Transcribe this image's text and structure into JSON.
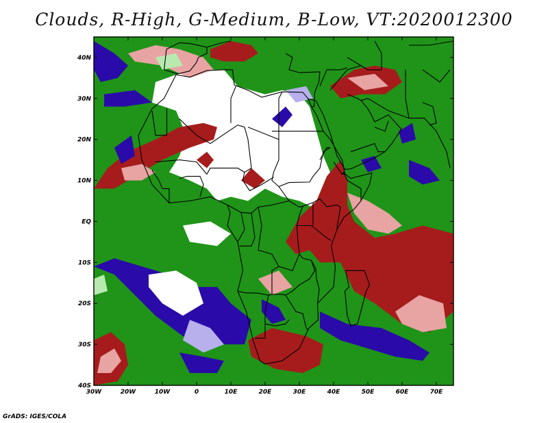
{
  "title": "Clouds, R-High, G-Medium, B-Low, VT:2020012300",
  "credit": "GrADS: IGES/COLA",
  "colors": {
    "high": "#a61c1c",
    "high_light": "#e8a3a3",
    "medium": "#1f9418",
    "medium_light": "#b8eab0",
    "low": "#2a0aa8",
    "low_light": "#b7b0ec",
    "clear": "#ffffff",
    "border": "#000000"
  },
  "chart_data": {
    "type": "heatmap",
    "title": "Clouds, R-High, G-Medium, B-Low, VT:2020012300",
    "xlim": [
      -30,
      75
    ],
    "ylim": [
      -40,
      45
    ],
    "x_ticks": [
      {
        "value": -30,
        "label": "30W"
      },
      {
        "value": -20,
        "label": "20W"
      },
      {
        "value": -10,
        "label": "10W"
      },
      {
        "value": 0,
        "label": "0"
      },
      {
        "value": 10,
        "label": "10E"
      },
      {
        "value": 20,
        "label": "20E"
      },
      {
        "value": 30,
        "label": "30E"
      },
      {
        "value": 40,
        "label": "40E"
      },
      {
        "value": 50,
        "label": "50E"
      },
      {
        "value": 60,
        "label": "60E"
      },
      {
        "value": 70,
        "label": "70E"
      }
    ],
    "y_ticks": [
      {
        "value": 40,
        "label": "40N"
      },
      {
        "value": 30,
        "label": "30N"
      },
      {
        "value": 20,
        "label": "20N"
      },
      {
        "value": 10,
        "label": "10N"
      },
      {
        "value": 0,
        "label": "EQ"
      },
      {
        "value": -10,
        "label": "10S"
      },
      {
        "value": -20,
        "label": "20S"
      },
      {
        "value": -30,
        "label": "30S"
      },
      {
        "value": -40,
        "label": "40S"
      }
    ],
    "regions": [
      {
        "cloud": "medium",
        "shade": "dark",
        "points": [
          [
            -30,
            45
          ],
          [
            75,
            45
          ],
          [
            75,
            -40
          ],
          [
            -30,
            -40
          ]
        ]
      },
      {
        "cloud": "clear",
        "shade": "dark",
        "points": [
          [
            -12,
            34
          ],
          [
            -2,
            37
          ],
          [
            8,
            37
          ],
          [
            12,
            33
          ],
          [
            20,
            31
          ],
          [
            25,
            32
          ],
          [
            30,
            31
          ],
          [
            33,
            28
          ],
          [
            35,
            22
          ],
          [
            37,
            16
          ],
          [
            40,
            10
          ],
          [
            41,
            6
          ],
          [
            35,
            3
          ],
          [
            30,
            5
          ],
          [
            25,
            6
          ],
          [
            20,
            8
          ],
          [
            15,
            5
          ],
          [
            10,
            6
          ],
          [
            6,
            5
          ],
          [
            3,
            8
          ],
          [
            -2,
            10
          ],
          [
            -8,
            12
          ],
          [
            -5,
            16
          ],
          [
            -3,
            21
          ],
          [
            -6,
            27
          ],
          [
            -13,
            29
          ]
        ]
      },
      {
        "cloud": "high",
        "shade": "dark",
        "points": [
          [
            -30,
            8
          ],
          [
            -26,
            13
          ],
          [
            -20,
            17
          ],
          [
            -12,
            20
          ],
          [
            -5,
            23
          ],
          [
            2,
            24
          ],
          [
            6,
            23
          ],
          [
            5,
            20
          ],
          [
            -2,
            18
          ],
          [
            -10,
            15
          ],
          [
            -18,
            11
          ],
          [
            -24,
            8
          ]
        ]
      },
      {
        "cloud": "high",
        "shade": "light",
        "points": [
          [
            -22,
            13
          ],
          [
            -16,
            14
          ],
          [
            -12,
            12
          ],
          [
            -16,
            10
          ],
          [
            -21,
            10
          ]
        ]
      },
      {
        "cloud": "high",
        "shade": "dark",
        "points": [
          [
            26,
            -5
          ],
          [
            30,
            1
          ],
          [
            35,
            5
          ],
          [
            38,
            11
          ],
          [
            42,
            15
          ],
          [
            44,
            10
          ],
          [
            44,
            4
          ],
          [
            46,
            0
          ],
          [
            52,
            -4
          ],
          [
            58,
            -3
          ],
          [
            66,
            -1
          ],
          [
            75,
            -3
          ],
          [
            75,
            -22
          ],
          [
            68,
            -27
          ],
          [
            60,
            -25
          ],
          [
            52,
            -20
          ],
          [
            46,
            -17
          ],
          [
            42,
            -10
          ],
          [
            36,
            -10
          ],
          [
            33,
            -7
          ],
          [
            29,
            -8
          ]
        ]
      },
      {
        "cloud": "high",
        "shade": "light",
        "points": [
          [
            44,
            7
          ],
          [
            50,
            5
          ],
          [
            56,
            2
          ],
          [
            60,
            -1
          ],
          [
            56,
            -3
          ],
          [
            50,
            -2
          ],
          [
            46,
            2
          ]
        ]
      },
      {
        "cloud": "high",
        "shade": "light",
        "points": [
          [
            58,
            -22
          ],
          [
            65,
            -18
          ],
          [
            72,
            -20
          ],
          [
            73,
            -26
          ],
          [
            66,
            -27
          ],
          [
            60,
            -25
          ]
        ]
      },
      {
        "cloud": "high",
        "shade": "dark",
        "points": [
          [
            -30,
            -29
          ],
          [
            -25,
            -27
          ],
          [
            -21,
            -30
          ],
          [
            -20,
            -35
          ],
          [
            -23,
            -39
          ],
          [
            -30,
            -40
          ]
        ]
      },
      {
        "cloud": "high",
        "shade": "light",
        "points": [
          [
            -28,
            -33
          ],
          [
            -24,
            -31
          ],
          [
            -22,
            -34
          ],
          [
            -25,
            -37
          ],
          [
            -29,
            -37
          ]
        ]
      },
      {
        "cloud": "high",
        "shade": "dark",
        "points": [
          [
            15,
            -29
          ],
          [
            22,
            -26
          ],
          [
            32,
            -28
          ],
          [
            37,
            -30
          ],
          [
            36,
            -35
          ],
          [
            31,
            -37
          ],
          [
            23,
            -36
          ],
          [
            16,
            -33
          ]
        ]
      },
      {
        "cloud": "high",
        "shade": "light",
        "points": [
          [
            -20,
            41
          ],
          [
            -12,
            43
          ],
          [
            -5,
            42
          ],
          [
            2,
            40
          ],
          [
            5,
            37
          ],
          [
            -2,
            35
          ],
          [
            -10,
            38
          ],
          [
            -18,
            39
          ]
        ]
      },
      {
        "cloud": "high",
        "shade": "dark",
        "points": [
          [
            4,
            42
          ],
          [
            10,
            44
          ],
          [
            16,
            43
          ],
          [
            18,
            41
          ],
          [
            14,
            39
          ],
          [
            8,
            39
          ],
          [
            4,
            40
          ]
        ]
      },
      {
        "cloud": "high",
        "shade": "dark",
        "points": [
          [
            39,
            33
          ],
          [
            46,
            37
          ],
          [
            52,
            38
          ],
          [
            58,
            37
          ],
          [
            60,
            34
          ],
          [
            55,
            31
          ],
          [
            48,
            31
          ],
          [
            42,
            30
          ]
        ]
      },
      {
        "cloud": "high",
        "shade": "light",
        "points": [
          [
            44,
            35
          ],
          [
            52,
            36
          ],
          [
            56,
            33
          ],
          [
            49,
            32
          ]
        ]
      },
      {
        "cloud": "high",
        "shade": "dark",
        "points": [
          [
            13,
            10
          ],
          [
            16,
            13
          ],
          [
            20,
            10
          ],
          [
            17,
            8
          ]
        ]
      },
      {
        "cloud": "high",
        "shade": "dark",
        "points": [
          [
            0,
            15
          ],
          [
            3,
            17
          ],
          [
            5,
            15
          ],
          [
            3,
            13
          ]
        ]
      },
      {
        "cloud": "high",
        "shade": "light",
        "points": [
          [
            18,
            -14
          ],
          [
            24,
            -12
          ],
          [
            28,
            -16
          ],
          [
            22,
            -18
          ]
        ]
      },
      {
        "cloud": "low",
        "shade": "dark",
        "points": [
          [
            -30,
            44
          ],
          [
            -24,
            41
          ],
          [
            -20,
            38
          ],
          [
            -23,
            35
          ],
          [
            -28,
            34
          ],
          [
            -30,
            37
          ]
        ]
      },
      {
        "cloud": "low",
        "shade": "dark",
        "points": [
          [
            -27,
            31
          ],
          [
            -18,
            32
          ],
          [
            -13,
            29
          ],
          [
            -21,
            28
          ],
          [
            -27,
            28
          ]
        ]
      },
      {
        "cloud": "low",
        "shade": "dark",
        "points": [
          [
            -30,
            -11
          ],
          [
            -24,
            -13
          ],
          [
            -18,
            -18
          ],
          [
            -12,
            -23
          ],
          [
            -4,
            -28
          ],
          [
            6,
            -30
          ],
          [
            14,
            -30
          ],
          [
            16,
            -24
          ],
          [
            10,
            -20
          ],
          [
            6,
            -16
          ],
          [
            -2,
            -16
          ],
          [
            -8,
            -13
          ],
          [
            -16,
            -11
          ],
          [
            -24,
            -9
          ]
        ]
      },
      {
        "cloud": "clear",
        "shade": "dark",
        "points": [
          [
            -14,
            -13
          ],
          [
            -6,
            -12
          ],
          [
            0,
            -15
          ],
          [
            2,
            -20
          ],
          [
            -4,
            -23
          ],
          [
            -10,
            -20
          ],
          [
            -14,
            -16
          ]
        ]
      },
      {
        "cloud": "low",
        "shade": "light",
        "points": [
          [
            -2,
            -24
          ],
          [
            4,
            -26
          ],
          [
            8,
            -30
          ],
          [
            2,
            -32
          ],
          [
            -4,
            -29
          ]
        ]
      },
      {
        "cloud": "low",
        "shade": "dark",
        "points": [
          [
            36,
            -22
          ],
          [
            44,
            -25
          ],
          [
            54,
            -26
          ],
          [
            62,
            -29
          ],
          [
            68,
            -32
          ],
          [
            66,
            -34
          ],
          [
            58,
            -33
          ],
          [
            50,
            -31
          ],
          [
            42,
            -29
          ],
          [
            36,
            -26
          ]
        ]
      },
      {
        "cloud": "low",
        "shade": "dark",
        "points": [
          [
            19,
            -19
          ],
          [
            24,
            -21
          ],
          [
            26,
            -24
          ],
          [
            22,
            -25
          ],
          [
            19,
            -22
          ]
        ]
      },
      {
        "cloud": "low",
        "shade": "dark",
        "points": [
          [
            -5,
            -32
          ],
          [
            2,
            -33
          ],
          [
            8,
            -34
          ],
          [
            6,
            -37
          ],
          [
            -2,
            -37
          ]
        ]
      },
      {
        "cloud": "low",
        "shade": "dark",
        "points": [
          [
            22,
            25
          ],
          [
            26,
            28
          ],
          [
            28,
            26
          ],
          [
            25,
            23
          ]
        ]
      },
      {
        "cloud": "low",
        "shade": "light",
        "points": [
          [
            26,
            32
          ],
          [
            32,
            33
          ],
          [
            34,
            30
          ],
          [
            29,
            29
          ]
        ]
      },
      {
        "cloud": "low",
        "shade": "dark",
        "points": [
          [
            62,
            15
          ],
          [
            68,
            13
          ],
          [
            71,
            10
          ],
          [
            66,
            9
          ],
          [
            62,
            11
          ]
        ]
      },
      {
        "cloud": "low",
        "shade": "dark",
        "points": [
          [
            59,
            22
          ],
          [
            63,
            24
          ],
          [
            64,
            20
          ],
          [
            60,
            19
          ]
        ]
      },
      {
        "cloud": "low",
        "shade": "dark",
        "points": [
          [
            48,
            15
          ],
          [
            52,
            16
          ],
          [
            54,
            13
          ],
          [
            50,
            12
          ]
        ]
      },
      {
        "cloud": "low",
        "shade": "dark",
        "points": [
          [
            -24,
            18
          ],
          [
            -19,
            21
          ],
          [
            -18,
            16
          ],
          [
            -22,
            14
          ]
        ]
      },
      {
        "cloud": "clear",
        "shade": "dark",
        "points": [
          [
            -4,
            -1
          ],
          [
            4,
            0
          ],
          [
            10,
            -3
          ],
          [
            6,
            -6
          ],
          [
            -2,
            -5
          ]
        ]
      },
      {
        "cloud": "medium",
        "shade": "light",
        "points": [
          [
            -12,
            40
          ],
          [
            -6,
            41
          ],
          [
            -4,
            38
          ],
          [
            -10,
            37
          ]
        ]
      },
      {
        "cloud": "medium",
        "shade": "light",
        "points": [
          [
            -30,
            -14
          ],
          [
            -27,
            -13
          ],
          [
            -26,
            -17
          ],
          [
            -30,
            -18
          ]
        ]
      }
    ]
  }
}
